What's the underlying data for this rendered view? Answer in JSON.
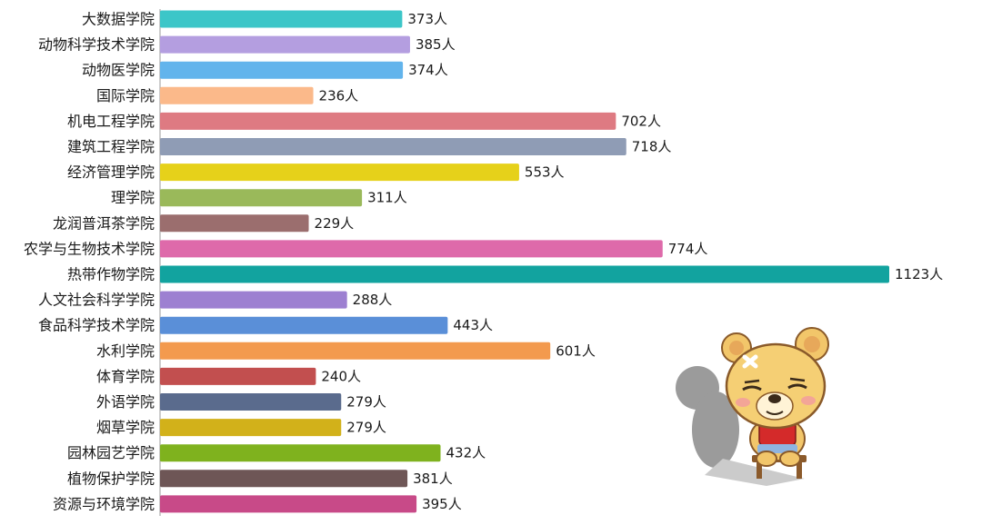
{
  "chart_data": {
    "type": "bar",
    "orientation": "horizontal",
    "title": "",
    "xlabel": "",
    "ylabel": "",
    "value_suffix": "人",
    "grid": false,
    "legend": "none",
    "categories": [
      "大数据学院",
      "动物科学技术学院",
      "动物医学院",
      "国际学院",
      "机电工程学院",
      "建筑工程学院",
      "经济管理学院",
      "理学院",
      "龙润普洱茶学院",
      "农学与生物技术学院",
      "热带作物学院",
      "人文社会科学学院",
      "食品科学技术学院",
      "水利学院",
      "体育学院",
      "外语学院",
      "烟草学院",
      "园林园艺学院",
      "植物保护学院",
      "资源与环境学院"
    ],
    "values": [
      373,
      385,
      374,
      236,
      702,
      718,
      553,
      311,
      229,
      774,
      1123,
      288,
      443,
      601,
      240,
      279,
      279,
      432,
      381,
      395
    ],
    "value_labels": [
      "373人",
      "385人",
      "374人",
      "236人",
      "702人",
      "718人",
      "553人",
      "311人",
      "229人",
      "774人",
      "1123人",
      "288人",
      "443人",
      "601人",
      "240人",
      "279人",
      "279人",
      "432人",
      "381人",
      "395人"
    ],
    "colors": [
      "#3cc6c8",
      "#b49ee0",
      "#62b4ec",
      "#fbb98a",
      "#de7a82",
      "#8f9cb5",
      "#e6d11a",
      "#9ab95a",
      "#9b6e6e",
      "#de6aaa",
      "#12a39f",
      "#9d80d1",
      "#5a8fd8",
      "#f39a4e",
      "#c24f4f",
      "#5a6b8d",
      "#d2b11a",
      "#7fb21e",
      "#6e5656",
      "#c84a88"
    ]
  },
  "mascot": {
    "icon": "bear-mascot-icon"
  }
}
